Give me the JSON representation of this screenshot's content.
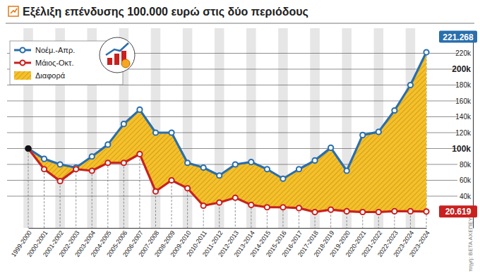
{
  "chart_data": {
    "type": "line",
    "title": "Εξέλιξη επένδυσης 100.000 ευρώ στις δύο περιόδους",
    "source": "πηγή: ΒΕΤΑ ΑΧΕΠΕΥ",
    "categories": [
      "1999-2000",
      "2000-2001",
      "2001-2002",
      "2002-2003",
      "2003-2004",
      "2004-2005",
      "2005-2006",
      "2006-2007",
      "2007-2008",
      "2008-2009",
      "2009-2010",
      "2010-2011",
      "2011-2012",
      "2012-2013",
      "2013-2014",
      "2014-2015",
      "2015-2016",
      "2016-2017",
      "2017-2018",
      "2018-2019",
      "2019-2020",
      "2020-2021",
      "2021-2022",
      "2022-2023",
      "2023-2024",
      "2023-2024"
    ],
    "series": [
      {
        "name": "Νοέμ.-Απρ.",
        "color": "#2a6ead",
        "marker": "circle",
        "end_label": "221.268",
        "values": [
          100000,
          87000,
          80000,
          76000,
          90000,
          105000,
          131000,
          149000,
          120000,
          120000,
          82000,
          76000,
          66000,
          80000,
          83000,
          74000,
          62000,
          74000,
          85000,
          101000,
          72000,
          117000,
          121000,
          148000,
          180000,
          221268
        ]
      },
      {
        "name": "Μάιος-Οκτ.",
        "color": "#c8211f",
        "marker": "circle",
        "end_label": "20.619",
        "values": [
          100000,
          74000,
          59000,
          74000,
          72000,
          82000,
          82000,
          93000,
          46000,
          60000,
          50000,
          28000,
          32000,
          38000,
          29000,
          26000,
          26000,
          25000,
          20000,
          23000,
          21000,
          20000,
          20000,
          21000,
          21000,
          20619
        ]
      }
    ],
    "difference": {
      "name": "Διαφορά",
      "color": "#f5c02a"
    },
    "ylim": [
      0,
      240000
    ],
    "yticks": [
      {
        "value": 40000,
        "label": "40k"
      },
      {
        "value": 60000,
        "label": "60k"
      },
      {
        "value": 80000,
        "label": "80k"
      },
      {
        "value": 100000,
        "label": "100k"
      },
      {
        "value": 120000,
        "label": "120k"
      },
      {
        "value": 140000,
        "label": "140k"
      },
      {
        "value": 160000,
        "label": "160k"
      },
      {
        "value": 180000,
        "label": "180k"
      },
      {
        "value": 200000,
        "label": "200k"
      },
      {
        "value": 220000,
        "label": "220k"
      }
    ],
    "grid": true,
    "legend": "top-left"
  }
}
